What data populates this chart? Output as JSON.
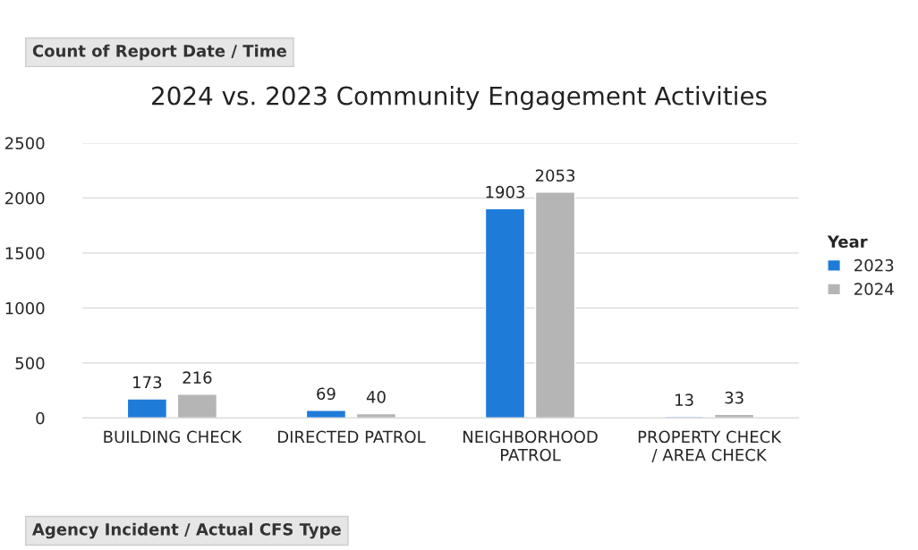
{
  "chart_data": {
    "type": "bar",
    "title": "2024 vs. 2023 Community Engagement Activities",
    "categories": [
      "BUILDING CHECK",
      "DIRECTED PATROL",
      "NEIGHBORHOOD\nPATROL",
      "PROPERTY CHECK\n/ AREA CHECK"
    ],
    "series": [
      {
        "name": "2023",
        "color": "#1f7bd8",
        "values": [
          173,
          69,
          1903,
          13
        ]
      },
      {
        "name": "2024",
        "color": "#b5b5b5",
        "values": [
          216,
          40,
          2053,
          33
        ]
      }
    ],
    "ylim": [
      0,
      2500
    ],
    "yticks": [
      0,
      500,
      1000,
      1500,
      2000,
      2500
    ],
    "grid": "y",
    "data_labels": true,
    "legend": "right",
    "legend_title": "Year",
    "annotations": [
      "Count of Report Date / Time",
      "Agency Incident / Actual CFS Type"
    ]
  }
}
